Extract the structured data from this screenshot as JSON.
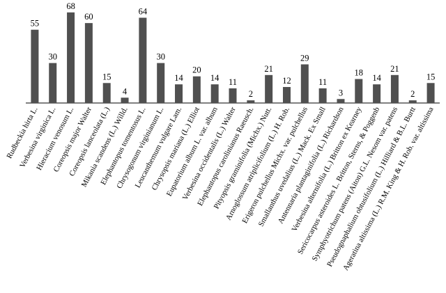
{
  "chart_data": {
    "type": "bar",
    "categories": [
      "Rudbeckia hirta L.",
      "Verbesina virginica L.",
      "Hieracium venosum L.",
      "Coreopsis major Walter",
      "Coreopsis lanceolata (L.)",
      "Mikania scandens (L.) Willd.",
      "Elephantopus tomentosus L.",
      "Chrysogonum virginianum L.",
      "Leucanthemum vulgare Lam.",
      "Chrysopsis mariana (L.) Elliot",
      "Eupatorium album L. var. album",
      "Verbesina occidentalis (L.) Walter",
      "Elephantopus carolinianus Raeusch.",
      "Pityopsis graminifolia (Michx.) Nutt.",
      "Arnoglossum atriplicifolium (L.) H. Rob.",
      "Erigeron pulchellus Michx. var. pulchellus",
      "Smallanthus uvedalius (L.) Mack. Ex Small",
      "Antennaria plantaginifolia (L.) Richardson",
      "Verbesina alternifolia (L.) Britton ex Kearney",
      "Sericocarpus asteroides L. Britton, Sterns, & Poggenb",
      "Symphyotrichum patens (Aiton) G.L. Nesom var. patens",
      "Pseudognaphalium obtusifolium (L.) Hilliard & B.L. Burtt",
      "Ageratina altissima (L.) R.M. King & H. Rob. var. altissima"
    ],
    "values": [
      55,
      30,
      68,
      60,
      15,
      4,
      64,
      30,
      14,
      20,
      14,
      11,
      2,
      21,
      12,
      29,
      11,
      3,
      18,
      14,
      21,
      2,
      15
    ],
    "color": "#505050",
    "ylim": [
      0,
      70
    ]
  }
}
